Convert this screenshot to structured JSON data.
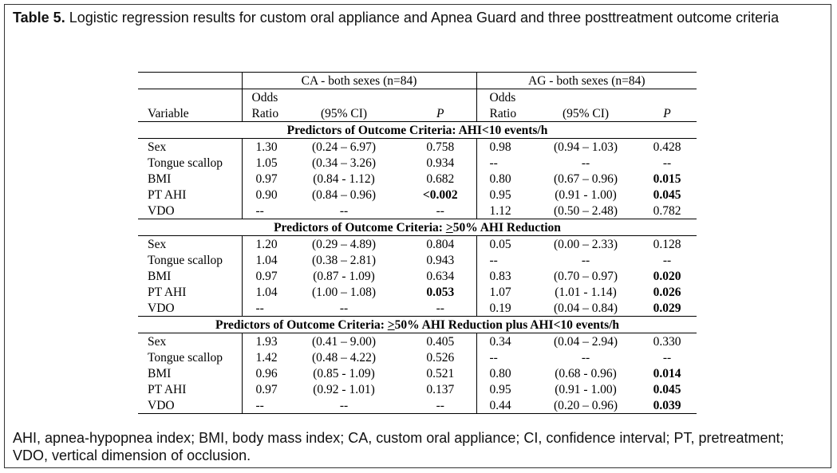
{
  "caption": {
    "label": "Table 5.",
    "text": " Logistic regression results for custom oral appliance and Apnea Guard and three posttreatment outcome criteria"
  },
  "header": {
    "group_ca": "CA - both sexes (n=84)",
    "group_ag": "AG - both sexes (n=84)",
    "odds_line1": "Odds",
    "odds_line2": "Ratio",
    "variable": "Variable",
    "ci": "(95% CI)",
    "p": "P"
  },
  "sections": [
    {
      "title_pre": "Predictors of Outcome Criteria:  AHI<10 events/h",
      "title_ul": "",
      "title_post": "",
      "rows": [
        {
          "var": "Sex",
          "ca_or": "1.30",
          "ca_ci": "(0.24 – 6.97)",
          "ca_p": "0.758",
          "ca_bold": false,
          "ag_or": "0.98",
          "ag_ci": "(0.94 – 1.03)",
          "ag_p": "0.428",
          "ag_bold": false
        },
        {
          "var": "Tongue scallop",
          "ca_or": "1.05",
          "ca_ci": "(0.34 – 3.26)",
          "ca_p": "0.934",
          "ca_bold": false,
          "ag_or": "--",
          "ag_ci": "--",
          "ag_p": "--",
          "ag_bold": false
        },
        {
          "var": "BMI",
          "ca_or": "0.97",
          "ca_ci": "(0.84 - 1.12)",
          "ca_p": "0.682",
          "ca_bold": false,
          "ag_or": "0.80",
          "ag_ci": "(0.67 – 0.96)",
          "ag_p": "0.015",
          "ag_bold": true
        },
        {
          "var": "PT AHI",
          "ca_or": "0.90",
          "ca_ci": "(0.84 – 0.96)",
          "ca_p": "<0.002",
          "ca_bold": true,
          "ag_or": "0.95",
          "ag_ci": "(0.91 - 1.00)",
          "ag_p": "0.045",
          "ag_bold": true
        },
        {
          "var": "VDO",
          "ca_or": "--",
          "ca_ci": "--",
          "ca_p": "--",
          "ca_bold": false,
          "ag_or": "1.12",
          "ag_ci": "(0.50 – 2.48)",
          "ag_p": "0.782",
          "ag_bold": false
        }
      ]
    },
    {
      "title_pre": "Predictors of Outcome Criteria:  ",
      "title_ul": ">",
      "title_post": "50% AHI Reduction",
      "rows": [
        {
          "var": "Sex",
          "ca_or": "1.20",
          "ca_ci": "(0.29 – 4.89)",
          "ca_p": "0.804",
          "ca_bold": false,
          "ag_or": "0.05",
          "ag_ci": "(0.00 – 2.33)",
          "ag_p": "0.128",
          "ag_bold": false
        },
        {
          "var": "Tongue scallop",
          "ca_or": "1.04",
          "ca_ci": "(0.38 – 2.81)",
          "ca_p": "0.943",
          "ca_bold": false,
          "ag_or": "--",
          "ag_ci": "--",
          "ag_p": "--",
          "ag_bold": false
        },
        {
          "var": "BMI",
          "ca_or": "0.97",
          "ca_ci": "(0.87 - 1.09)",
          "ca_p": "0.634",
          "ca_bold": false,
          "ag_or": "0.83",
          "ag_ci": "(0.70 – 0.97)",
          "ag_p": "0.020",
          "ag_bold": true
        },
        {
          "var": "PT AHI",
          "ca_or": "1.04",
          "ca_ci": "(1.00 – 1.08)",
          "ca_p": "0.053",
          "ca_bold": true,
          "ag_or": "1.07",
          "ag_ci": "(1.01 - 1.14)",
          "ag_p": "0.026",
          "ag_bold": true
        },
        {
          "var": "VDO",
          "ca_or": "--",
          "ca_ci": "--",
          "ca_p": "--",
          "ca_bold": false,
          "ag_or": "0.19",
          "ag_ci": "(0.04 – 0.84)",
          "ag_p": "0.029",
          "ag_bold": true
        }
      ]
    },
    {
      "title_pre": "Predictors of Outcome Criteria:  ",
      "title_ul": ">",
      "title_post": "50% AHI Reduction plus AHI<10 events/h",
      "rows": [
        {
          "var": "Sex",
          "ca_or": "1.93",
          "ca_ci": "(0.41 – 9.00)",
          "ca_p": "0.405",
          "ca_bold": false,
          "ag_or": "0.34",
          "ag_ci": "(0.04 – 2.94)",
          "ag_p": "0.330",
          "ag_bold": false
        },
        {
          "var": "Tongue scallop",
          "ca_or": "1.42",
          "ca_ci": "(0.48 – 4.22)",
          "ca_p": "0.526",
          "ca_bold": false,
          "ag_or": "--",
          "ag_ci": "--",
          "ag_p": "--",
          "ag_bold": false
        },
        {
          "var": "BMI",
          "ca_or": "0.96",
          "ca_ci": "(0.85 - 1.09)",
          "ca_p": "0.521",
          "ca_bold": false,
          "ag_or": "0.80",
          "ag_ci": "(0.68 - 0.96)",
          "ag_p": "0.014",
          "ag_bold": true
        },
        {
          "var": "PT AHI",
          "ca_or": "0.97",
          "ca_ci": "(0.92 - 1.01)",
          "ca_p": "0.137",
          "ca_bold": false,
          "ag_or": "0.95",
          "ag_ci": "(0.91 - 1.00)",
          "ag_p": "0.045",
          "ag_bold": true
        },
        {
          "var": "VDO",
          "ca_or": "--",
          "ca_ci": "--",
          "ca_p": "--",
          "ca_bold": false,
          "ag_or": "0.44",
          "ag_ci": "(0.20 – 0.96)",
          "ag_p": "0.039",
          "ag_bold": true
        }
      ]
    }
  ],
  "footer": "AHI, apnea-hypopnea index; BMI, body mass index; CA, custom oral appliance; CI, confidence interval; PT, pretreatment; VDO, vertical dimension of occlusion."
}
